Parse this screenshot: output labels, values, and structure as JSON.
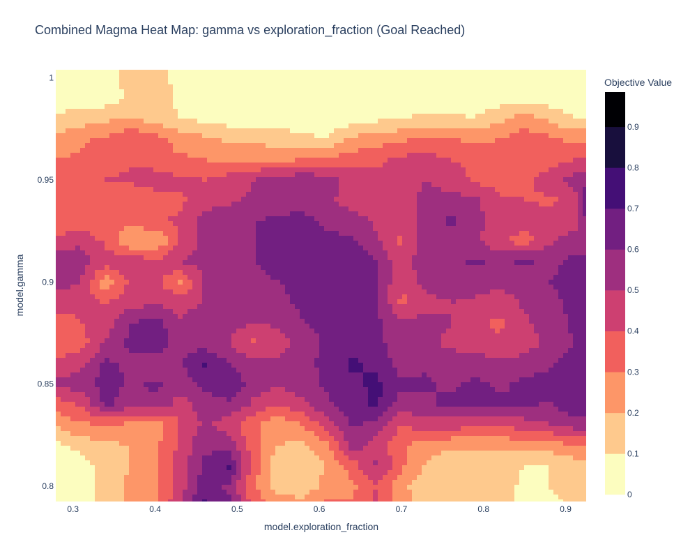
{
  "title": "Combined Magma Heat Map: gamma vs exploration_fraction (Goal Reached)",
  "chart_data": {
    "type": "heatmap",
    "subtype": "contour",
    "title": "Combined Magma Heat Map: gamma vs exploration_fraction (Goal Reached)",
    "xlabel": "model.exploration_fraction",
    "ylabel": "model.gamma",
    "xlim": [
      0.279,
      0.925
    ],
    "ylim": [
      0.7925,
      1.004
    ],
    "x_ticks": [
      "0.3",
      "0.4",
      "0.5",
      "0.6",
      "0.7",
      "0.8",
      "0.9"
    ],
    "y_ticks": [
      "0.8",
      "0.85",
      "0.9",
      "0.95",
      "1"
    ],
    "x": [
      0.28,
      0.31,
      0.34,
      0.37,
      0.4,
      0.43,
      0.46,
      0.49,
      0.52,
      0.55,
      0.58,
      0.61,
      0.64,
      0.67,
      0.7,
      0.73,
      0.76,
      0.79,
      0.82,
      0.85,
      0.88,
      0.91,
      0.925
    ],
    "y": [
      0.7925,
      0.8,
      0.81,
      0.82,
      0.83,
      0.84,
      0.85,
      0.86,
      0.87,
      0.88,
      0.89,
      0.9,
      0.91,
      0.92,
      0.93,
      0.94,
      0.95,
      0.96,
      0.97,
      0.98,
      0.99,
      1.004
    ],
    "z": [
      [
        0.02,
        0.05,
        0.15,
        0.22,
        0.28,
        0.48,
        0.72,
        0.62,
        0.35,
        0.25,
        0.22,
        0.32,
        0.3,
        0.42,
        0.25,
        0.15,
        0.12,
        0.14,
        0.15,
        0.05,
        0.08,
        0.12,
        0.15
      ],
      [
        0.02,
        0.05,
        0.15,
        0.22,
        0.28,
        0.45,
        0.65,
        0.58,
        0.32,
        0.15,
        0.12,
        0.25,
        0.28,
        0.4,
        0.22,
        0.15,
        0.12,
        0.12,
        0.14,
        0.08,
        0.1,
        0.14,
        0.15
      ],
      [
        0.02,
        0.05,
        0.16,
        0.2,
        0.27,
        0.45,
        0.62,
        0.72,
        0.35,
        0.12,
        0.1,
        0.2,
        0.35,
        0.52,
        0.32,
        0.18,
        0.12,
        0.12,
        0.13,
        0.1,
        0.1,
        0.14,
        0.16
      ],
      [
        0.08,
        0.14,
        0.18,
        0.2,
        0.28,
        0.42,
        0.58,
        0.55,
        0.35,
        0.2,
        0.18,
        0.28,
        0.55,
        0.45,
        0.32,
        0.25,
        0.22,
        0.22,
        0.22,
        0.25,
        0.25,
        0.3,
        0.28
      ],
      [
        0.22,
        0.28,
        0.3,
        0.28,
        0.22,
        0.4,
        0.52,
        0.45,
        0.32,
        0.22,
        0.3,
        0.45,
        0.62,
        0.55,
        0.4,
        0.45,
        0.45,
        0.42,
        0.42,
        0.45,
        0.5,
        0.55,
        0.55
      ],
      [
        0.35,
        0.42,
        0.62,
        0.55,
        0.58,
        0.45,
        0.55,
        0.58,
        0.48,
        0.4,
        0.48,
        0.58,
        0.65,
        0.72,
        0.55,
        0.58,
        0.62,
        0.65,
        0.62,
        0.62,
        0.58,
        0.68,
        0.65
      ],
      [
        0.52,
        0.55,
        0.65,
        0.58,
        0.62,
        0.55,
        0.62,
        0.68,
        0.55,
        0.52,
        0.55,
        0.62,
        0.68,
        0.72,
        0.62,
        0.62,
        0.58,
        0.62,
        0.58,
        0.62,
        0.65,
        0.68,
        0.65
      ],
      [
        0.42,
        0.48,
        0.62,
        0.58,
        0.52,
        0.58,
        0.72,
        0.6,
        0.55,
        0.52,
        0.58,
        0.62,
        0.72,
        0.68,
        0.55,
        0.58,
        0.55,
        0.55,
        0.52,
        0.55,
        0.58,
        0.65,
        0.65
      ],
      [
        0.32,
        0.35,
        0.52,
        0.62,
        0.68,
        0.55,
        0.55,
        0.5,
        0.38,
        0.45,
        0.55,
        0.62,
        0.65,
        0.62,
        0.55,
        0.52,
        0.48,
        0.45,
        0.42,
        0.45,
        0.52,
        0.6,
        0.62
      ],
      [
        0.35,
        0.4,
        0.45,
        0.6,
        0.65,
        0.52,
        0.58,
        0.55,
        0.5,
        0.52,
        0.6,
        0.62,
        0.65,
        0.62,
        0.52,
        0.55,
        0.5,
        0.42,
        0.38,
        0.48,
        0.55,
        0.62,
        0.62
      ],
      [
        0.45,
        0.42,
        0.4,
        0.45,
        0.48,
        0.45,
        0.5,
        0.52,
        0.55,
        0.58,
        0.62,
        0.65,
        0.65,
        0.62,
        0.38,
        0.45,
        0.5,
        0.48,
        0.45,
        0.52,
        0.58,
        0.62,
        0.62
      ],
      [
        0.55,
        0.5,
        0.22,
        0.42,
        0.45,
        0.28,
        0.5,
        0.55,
        0.58,
        0.6,
        0.62,
        0.65,
        0.68,
        0.62,
        0.4,
        0.55,
        0.58,
        0.55,
        0.52,
        0.55,
        0.6,
        0.62,
        0.62
      ],
      [
        0.55,
        0.55,
        0.45,
        0.48,
        0.42,
        0.5,
        0.55,
        0.58,
        0.6,
        0.62,
        0.62,
        0.64,
        0.7,
        0.6,
        0.42,
        0.6,
        0.58,
        0.62,
        0.58,
        0.62,
        0.58,
        0.62,
        0.62
      ],
      [
        0.45,
        0.48,
        0.38,
        0.2,
        0.18,
        0.42,
        0.52,
        0.58,
        0.6,
        0.62,
        0.62,
        0.62,
        0.62,
        0.52,
        0.38,
        0.55,
        0.55,
        0.52,
        0.42,
        0.35,
        0.48,
        0.55,
        0.55
      ],
      [
        0.3,
        0.32,
        0.3,
        0.35,
        0.38,
        0.42,
        0.55,
        0.58,
        0.6,
        0.62,
        0.62,
        0.58,
        0.55,
        0.48,
        0.42,
        0.55,
        0.62,
        0.52,
        0.48,
        0.45,
        0.45,
        0.45,
        0.6
      ],
      [
        0.3,
        0.32,
        0.3,
        0.32,
        0.35,
        0.38,
        0.45,
        0.48,
        0.52,
        0.55,
        0.58,
        0.52,
        0.45,
        0.4,
        0.48,
        0.52,
        0.55,
        0.52,
        0.42,
        0.4,
        0.38,
        0.42,
        0.65
      ],
      [
        0.35,
        0.38,
        0.4,
        0.42,
        0.45,
        0.42,
        0.4,
        0.45,
        0.5,
        0.55,
        0.58,
        0.55,
        0.45,
        0.42,
        0.45,
        0.5,
        0.45,
        0.38,
        0.35,
        0.38,
        0.45,
        0.55,
        0.58
      ],
      [
        0.3,
        0.32,
        0.35,
        0.38,
        0.35,
        0.32,
        0.3,
        0.28,
        0.28,
        0.28,
        0.3,
        0.32,
        0.35,
        0.38,
        0.42,
        0.45,
        0.4,
        0.38,
        0.35,
        0.32,
        0.35,
        0.4,
        0.4
      ],
      [
        0.22,
        0.28,
        0.32,
        0.4,
        0.35,
        0.25,
        0.22,
        0.18,
        0.18,
        0.15,
        0.12,
        0.1,
        0.22,
        0.25,
        0.28,
        0.32,
        0.3,
        0.28,
        0.3,
        0.35,
        0.32,
        0.28,
        0.28
      ],
      [
        0.12,
        0.15,
        0.18,
        0.2,
        0.15,
        0.1,
        0.08,
        0.05,
        0.05,
        0.05,
        0.05,
        0.05,
        0.05,
        0.08,
        0.1,
        0.12,
        0.12,
        0.1,
        0.18,
        0.25,
        0.18,
        0.1,
        0.1
      ],
      [
        0.05,
        0.05,
        0.05,
        0.12,
        0.15,
        0.08,
        0.05,
        0.05,
        0.05,
        0.05,
        0.05,
        0.05,
        0.05,
        0.05,
        0.05,
        0.05,
        0.05,
        0.05,
        0.05,
        0.05,
        0.05,
        0.05,
        0.05
      ],
      [
        0.05,
        0.05,
        0.05,
        0.15,
        0.16,
        0.05,
        0.05,
        0.05,
        0.05,
        0.05,
        0.05,
        0.05,
        0.05,
        0.05,
        0.05,
        0.05,
        0.05,
        0.05,
        0.05,
        0.05,
        0.05,
        0.05,
        0.05
      ]
    ],
    "colorbar": {
      "title": "Objective Value",
      "ticks": [
        "0",
        "0.1",
        "0.2",
        "0.3",
        "0.4",
        "0.5",
        "0.6",
        "0.7",
        "0.8",
        "0.9"
      ],
      "range": [
        0,
        0.985
      ],
      "levels": [
        0,
        0.1,
        0.2,
        0.3,
        0.4,
        0.5,
        0.6,
        0.7,
        0.8,
        0.9,
        0.985
      ],
      "colors": [
        "#fcfdbf",
        "#fec98d",
        "#fd9668",
        "#f1605d",
        "#cd4071",
        "#9e2f7f",
        "#721f81",
        "#440f76",
        "#180f3d",
        "#000004"
      ]
    },
    "colorscale": "Magma (reversed)",
    "grid": false,
    "legend": "colorbar-right"
  }
}
